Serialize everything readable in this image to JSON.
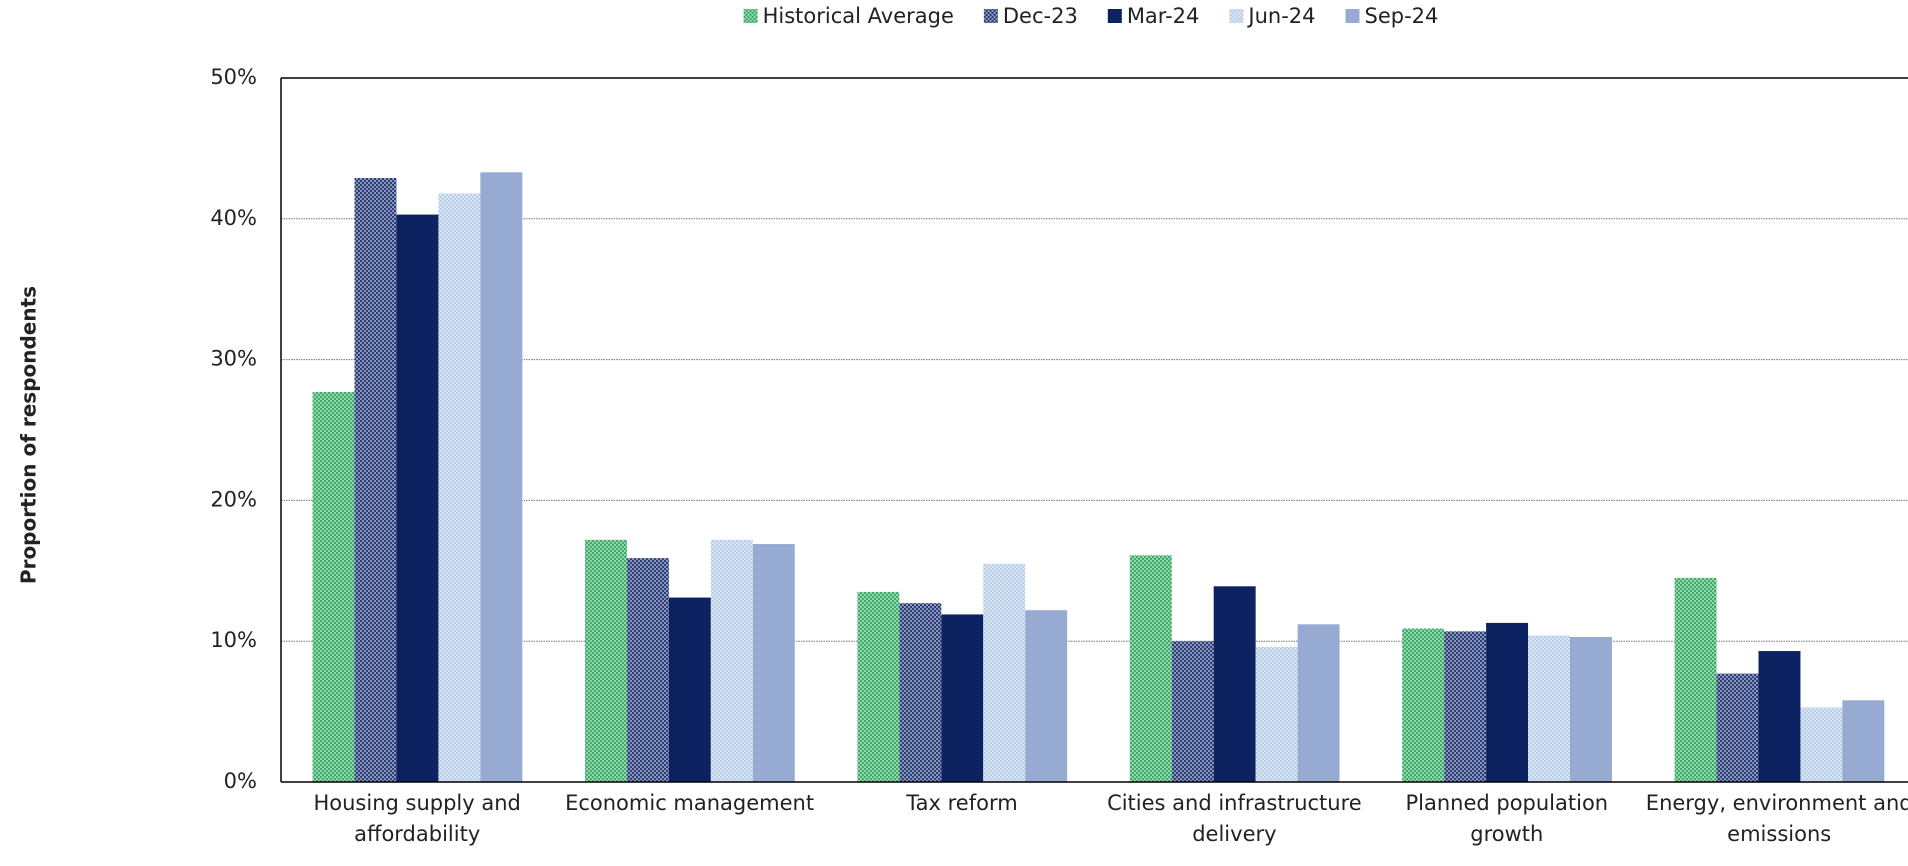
{
  "chart_data": {
    "type": "bar",
    "y_label": "Proportion of respondents",
    "categories": [
      "Housing supply and affordability",
      "Economic management",
      "Tax reform",
      "Cities and infrastructure delivery",
      "Planned population growth",
      "Energy, environment and emissions"
    ],
    "series": [
      {
        "name": "Historical Average",
        "color": "#3dae6a",
        "hatch": true,
        "values": [
          27.7,
          17.2,
          13.5,
          16.1,
          10.9,
          14.5
        ]
      },
      {
        "name": "Dec-23",
        "color": "#2b3d7a",
        "hatch": true,
        "values": [
          42.9,
          15.9,
          12.7,
          10.0,
          10.7,
          7.7
        ]
      },
      {
        "name": "Mar-24",
        "color": "#0d2260",
        "hatch": false,
        "values": [
          40.3,
          13.1,
          11.9,
          13.9,
          11.3,
          9.3
        ]
      },
      {
        "name": "Jun-24",
        "color": "#b9cfe9",
        "hatch": true,
        "values": [
          41.8,
          17.2,
          15.5,
          9.6,
          10.4,
          5.3
        ]
      },
      {
        "name": "Sep-24",
        "color": "#97aad1",
        "hatch": false,
        "values": [
          43.3,
          16.9,
          12.2,
          11.2,
          10.3,
          5.8
        ]
      }
    ],
    "ylim": [
      0,
      50
    ],
    "yticks": [
      {
        "value": 0,
        "label": "0%"
      },
      {
        "value": 10,
        "label": "10%"
      },
      {
        "value": 20,
        "label": "20%"
      },
      {
        "value": 30,
        "label": "30%"
      },
      {
        "value": 40,
        "label": "40%"
      },
      {
        "value": 50,
        "label": "50%"
      }
    ],
    "grid": true,
    "legend": "top"
  }
}
